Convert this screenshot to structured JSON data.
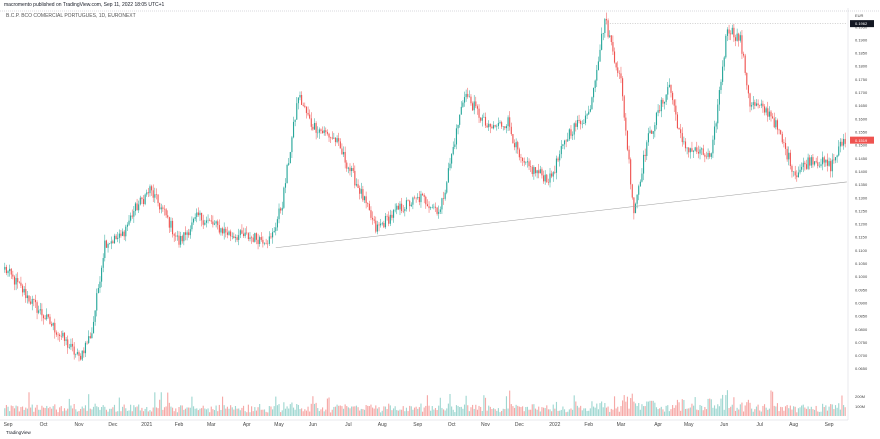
{
  "header": {
    "text": "macromento published on TradingView.com, Sep 11, 2022 18:05 UTC+1"
  },
  "symbol": {
    "text": "B.C.P. BCO COMERCIAL PORTUGUES, 1D, EURONEXT"
  },
  "footer": {
    "brand": "TradingView"
  },
  "colors": {
    "up": "#26a69a",
    "down": "#ef5350",
    "up_vol": "#9fd7d1",
    "down_vol": "#f6a8a6",
    "trend": "#9e9e9e",
    "marker": "#131722"
  },
  "chart_data": {
    "type": "candlestick",
    "currency_label": "EUR",
    "price_ticks": [
      "0.2000",
      "0.1950",
      "0.1900",
      "0.1850",
      "0.1800",
      "0.1750",
      "0.1700",
      "0.1650",
      "0.1600",
      "0.1550",
      "0.1500",
      "0.1450",
      "0.1400",
      "0.1350",
      "0.1300",
      "0.1250",
      "0.1200",
      "0.1150",
      "0.1100",
      "0.1050",
      "0.1000",
      "0.0950",
      "0.0900",
      "0.0850",
      "0.0800",
      "0.0750",
      "0.0700",
      "0.0650"
    ],
    "ylim": [
      0.063,
      0.201
    ],
    "volume_ticks": [
      "200M",
      "100M"
    ],
    "x_ticks": [
      {
        "label": "Sep",
        "index": 2
      },
      {
        "label": "Oct",
        "index": 24
      },
      {
        "label": "Nov",
        "index": 46
      },
      {
        "label": "Dec",
        "index": 67
      },
      {
        "label": "2021",
        "index": 88
      },
      {
        "label": "Feb",
        "index": 108
      },
      {
        "label": "Mar",
        "index": 128
      },
      {
        "label": "Apr",
        "index": 150
      },
      {
        "label": "May",
        "index": 170
      },
      {
        "label": "Jun",
        "index": 191
      },
      {
        "label": "Jul",
        "index": 213
      },
      {
        "label": "Aug",
        "index": 234
      },
      {
        "label": "Sep",
        "index": 256
      },
      {
        "label": "Oct",
        "index": 277
      },
      {
        "label": "Nov",
        "index": 298
      },
      {
        "label": "Dec",
        "index": 319
      },
      {
        "label": "2022",
        "index": 341
      },
      {
        "label": "Feb",
        "index": 362
      },
      {
        "label": "Mar",
        "index": 382
      },
      {
        "label": "Apr",
        "index": 405
      },
      {
        "label": "May",
        "index": 424
      },
      {
        "label": "Jun",
        "index": 446
      },
      {
        "label": "Jul",
        "index": 468
      },
      {
        "label": "Aug",
        "index": 489
      },
      {
        "label": "Sep",
        "index": 511
      }
    ],
    "highlights": [
      {
        "label": "0.1962",
        "value": 0.1962,
        "color": "#131722"
      },
      {
        "label": "0.1519",
        "value": 0.1519,
        "color": "#ef5350"
      }
    ],
    "anchors": [
      [
        0,
        0.103
      ],
      [
        20,
        0.088
      ],
      [
        30,
        0.081
      ],
      [
        46,
        0.069
      ],
      [
        54,
        0.079
      ],
      [
        62,
        0.113
      ],
      [
        72,
        0.115
      ],
      [
        80,
        0.125
      ],
      [
        90,
        0.133
      ],
      [
        100,
        0.123
      ],
      [
        108,
        0.113
      ],
      [
        120,
        0.123
      ],
      [
        140,
        0.116
      ],
      [
        165,
        0.114
      ],
      [
        172,
        0.128
      ],
      [
        182,
        0.169
      ],
      [
        190,
        0.158
      ],
      [
        205,
        0.152
      ],
      [
        220,
        0.133
      ],
      [
        230,
        0.118
      ],
      [
        245,
        0.126
      ],
      [
        258,
        0.13
      ],
      [
        270,
        0.125
      ],
      [
        285,
        0.17
      ],
      [
        300,
        0.156
      ],
      [
        312,
        0.159
      ],
      [
        320,
        0.143
      ],
      [
        338,
        0.137
      ],
      [
        350,
        0.155
      ],
      [
        362,
        0.162
      ],
      [
        372,
        0.198
      ],
      [
        382,
        0.174
      ],
      [
        390,
        0.125
      ],
      [
        398,
        0.151
      ],
      [
        412,
        0.173
      ],
      [
        420,
        0.15
      ],
      [
        438,
        0.145
      ],
      [
        448,
        0.195
      ],
      [
        456,
        0.19
      ],
      [
        462,
        0.166
      ],
      [
        475,
        0.162
      ],
      [
        490,
        0.139
      ],
      [
        500,
        0.145
      ],
      [
        512,
        0.142
      ],
      [
        520,
        0.1519
      ]
    ],
    "trendlines": [
      {
        "from": [
          168,
          0.111
        ],
        "to": [
          522,
          0.136
        ]
      },
      {
        "from": [
          372,
          0.1962
        ],
        "to": [
          522,
          0.1962
        ],
        "dotted": true
      }
    ]
  }
}
